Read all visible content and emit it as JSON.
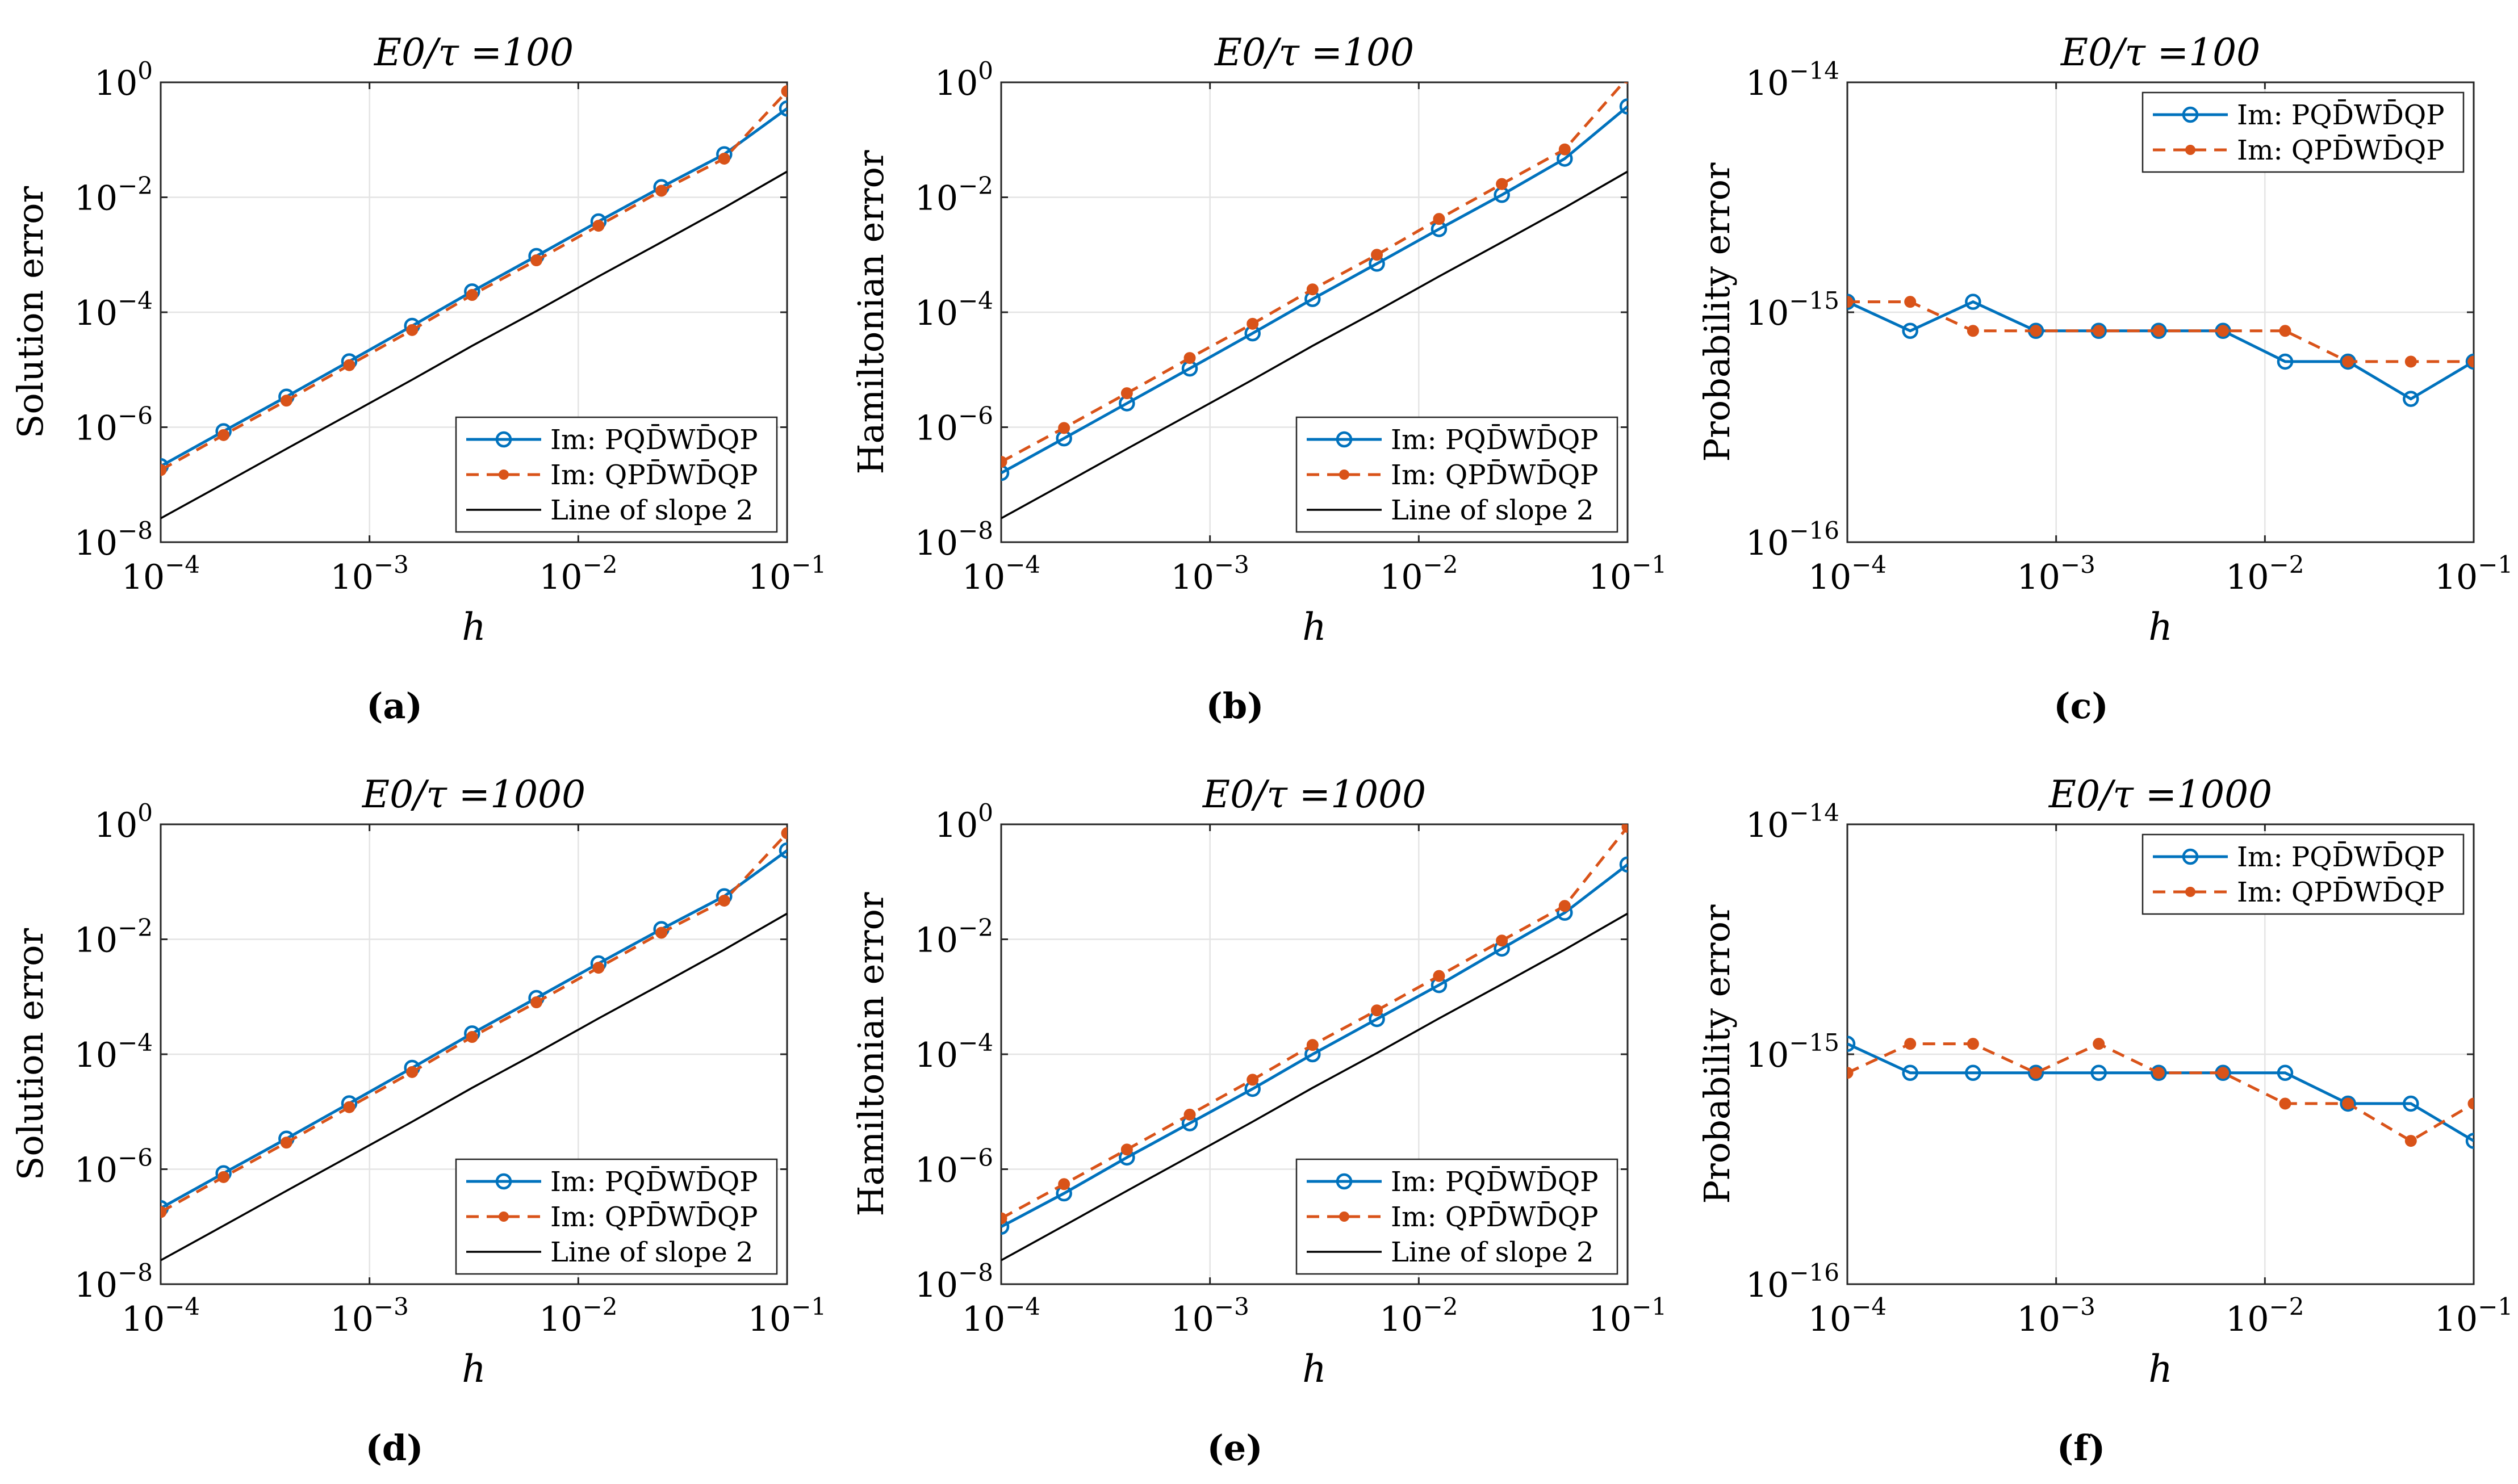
{
  "chart_data": [
    {
      "panel": "(a)",
      "type": "line",
      "title": "E0/τ =100",
      "xlabel": "h",
      "ylabel": "Solution error",
      "xscale": "log",
      "yscale": "log",
      "xlim": [
        0.0001,
        0.1
      ],
      "ylim": [
        1e-08,
        1
      ],
      "xticks": [
        0.0001,
        0.001,
        0.01,
        0.1
      ],
      "yticks": [
        1e-08,
        1e-06,
        0.0001,
        0.01,
        1
      ],
      "grid": true,
      "legend_position": "lower-right",
      "x": [
        0.0001,
        0.0002,
        0.0004,
        0.0008,
        0.0016,
        0.0031,
        0.0063,
        0.0125,
        0.025,
        0.05,
        0.1
      ],
      "series": [
        {
          "name": "Im: PQD̄WD̄QP",
          "color": "#0072BD",
          "line": "solid",
          "marker": "circle",
          "values": [
            2.1e-07,
            8.5e-07,
            3.4e-06,
            1.4e-05,
            5.8e-05,
            0.00023,
            0.00095,
            0.0038,
            0.015,
            0.056,
            0.35
          ]
        },
        {
          "name": "Im: QPD̄WD̄QP",
          "color": "#D95319",
          "line": "dashed",
          "marker": "dot",
          "values": [
            1.8e-07,
            7.3e-07,
            2.9e-06,
            1.2e-05,
            4.9e-05,
            0.0002,
            0.0008,
            0.0032,
            0.013,
            0.047,
            0.7
          ]
        },
        {
          "name": "Line of slope 2",
          "color": "#000000",
          "line": "solid",
          "marker": "none",
          "values": [
            2.6e-08,
            1.04e-07,
            4.2e-07,
            1.67e-06,
            6.7e-06,
            2.6e-05,
            0.000105,
            0.00042,
            0.00165,
            0.0066,
            0.028
          ]
        }
      ]
    },
    {
      "panel": "(b)",
      "type": "line",
      "title": "E0/τ =100",
      "xlabel": "h",
      "ylabel": "Hamiltonian error",
      "xscale": "log",
      "yscale": "log",
      "xlim": [
        0.0001,
        0.1
      ],
      "ylim": [
        1e-08,
        1
      ],
      "xticks": [
        0.0001,
        0.001,
        0.01,
        0.1
      ],
      "yticks": [
        1e-08,
        1e-06,
        0.0001,
        0.01,
        1
      ],
      "grid": true,
      "legend_position": "lower-right",
      "x": [
        0.0001,
        0.0002,
        0.0004,
        0.0008,
        0.0016,
        0.0031,
        0.0063,
        0.0125,
        0.025,
        0.05,
        0.1
      ],
      "series": [
        {
          "name": "Im: PQD̄WD̄QP",
          "color": "#0072BD",
          "line": "solid",
          "marker": "circle",
          "values": [
            1.6e-07,
            6.4e-07,
            2.6e-06,
            1.05e-05,
            4.3e-05,
            0.00017,
            0.0007,
            0.0028,
            0.011,
            0.047,
            0.38
          ]
        },
        {
          "name": "Im: QPD̄WD̄QP",
          "color": "#D95319",
          "line": "dashed",
          "marker": "dot",
          "values": [
            2.5e-07,
            9.7e-07,
            3.9e-06,
            1.6e-05,
            6.3e-05,
            0.00025,
            0.001,
            0.0042,
            0.017,
            0.068,
            1.2
          ]
        },
        {
          "name": "Line of slope 2",
          "color": "#000000",
          "line": "solid",
          "marker": "none",
          "values": [
            2.6e-08,
            1.04e-07,
            4.2e-07,
            1.67e-06,
            6.7e-06,
            2.6e-05,
            0.000105,
            0.00042,
            0.00165,
            0.0066,
            0.028
          ]
        }
      ]
    },
    {
      "panel": "(c)",
      "type": "line",
      "title": "E0/τ =100",
      "xlabel": "h",
      "ylabel": "Probability error",
      "xscale": "log",
      "yscale": "log",
      "xlim": [
        0.0001,
        0.1
      ],
      "ylim": [
        1e-16,
        1e-14
      ],
      "xticks": [
        0.0001,
        0.001,
        0.01,
        0.1
      ],
      "yticks": [
        1e-16,
        1e-15,
        1e-14
      ],
      "grid": true,
      "legend_position": "top-right",
      "x": [
        0.0001,
        0.0002,
        0.0004,
        0.0008,
        0.0016,
        0.0031,
        0.0063,
        0.0125,
        0.025,
        0.05,
        0.1
      ],
      "series": [
        {
          "name": "Im: PQD̄WD̄QP",
          "color": "#0072BD",
          "line": "solid",
          "marker": "circle",
          "values": [
            1.11e-15,
            8.3e-16,
            1.11e-15,
            8.3e-16,
            8.3e-16,
            8.3e-16,
            8.3e-16,
            6.1e-16,
            6.1e-16,
            4.2e-16,
            6.1e-16
          ]
        },
        {
          "name": "Im: QPD̄WD̄QP",
          "color": "#D95319",
          "line": "dashed",
          "marker": "dot",
          "values": [
            1.11e-15,
            1.11e-15,
            8.3e-16,
            8.3e-16,
            8.3e-16,
            8.3e-16,
            8.3e-16,
            8.3e-16,
            6.1e-16,
            6.1e-16,
            6.1e-16
          ]
        }
      ]
    },
    {
      "panel": "(d)",
      "type": "line",
      "title": "E0/τ =1000",
      "xlabel": "h",
      "ylabel": "Solution error",
      "xscale": "log",
      "yscale": "log",
      "xlim": [
        0.0001,
        0.1
      ],
      "ylim": [
        1e-08,
        1
      ],
      "xticks": [
        0.0001,
        0.001,
        0.01,
        0.1
      ],
      "yticks": [
        1e-08,
        1e-06,
        0.0001,
        0.01,
        1
      ],
      "grid": true,
      "legend_position": "lower-right",
      "x": [
        0.0001,
        0.0002,
        0.0004,
        0.0008,
        0.0016,
        0.0031,
        0.0063,
        0.0125,
        0.025,
        0.05,
        0.1
      ],
      "series": [
        {
          "name": "Im: PQD̄WD̄QP",
          "color": "#0072BD",
          "line": "solid",
          "marker": "circle",
          "values": [
            2.1e-07,
            8.5e-07,
            3.4e-06,
            1.4e-05,
            5.8e-05,
            0.00023,
            0.00095,
            0.0038,
            0.015,
            0.056,
            0.35
          ]
        },
        {
          "name": "Im: QPD̄WD̄QP",
          "color": "#D95319",
          "line": "dashed",
          "marker": "dot",
          "values": [
            1.8e-07,
            7.3e-07,
            2.9e-06,
            1.2e-05,
            4.9e-05,
            0.0002,
            0.0008,
            0.0032,
            0.013,
            0.047,
            0.7
          ]
        },
        {
          "name": "Line of slope 2",
          "color": "#000000",
          "line": "solid",
          "marker": "none",
          "values": [
            2.6e-08,
            1.04e-07,
            4.2e-07,
            1.67e-06,
            6.7e-06,
            2.6e-05,
            0.000105,
            0.00042,
            0.00165,
            0.0066,
            0.028
          ]
        }
      ]
    },
    {
      "panel": "(e)",
      "type": "line",
      "title": "E0/τ =1000",
      "xlabel": "h",
      "ylabel": "Hamiltonian error",
      "xscale": "log",
      "yscale": "log",
      "xlim": [
        0.0001,
        0.1
      ],
      "ylim": [
        1e-08,
        1
      ],
      "xticks": [
        0.0001,
        0.001,
        0.01,
        0.1
      ],
      "yticks": [
        1e-08,
        1e-06,
        0.0001,
        0.01,
        1
      ],
      "grid": true,
      "legend_position": "lower-right",
      "x": [
        0.0001,
        0.0002,
        0.0004,
        0.0008,
        0.0016,
        0.0031,
        0.0063,
        0.0125,
        0.025,
        0.05,
        0.1
      ],
      "series": [
        {
          "name": "Im: PQD̄WD̄QP",
          "color": "#0072BD",
          "line": "solid",
          "marker": "circle",
          "values": [
            1e-07,
            3.8e-07,
            1.6e-06,
            6.3e-06,
            2.5e-05,
            0.0001,
            0.00041,
            0.0016,
            0.0069,
            0.029,
            0.2
          ]
        },
        {
          "name": "Im: QPD̄WD̄QP",
          "color": "#D95319",
          "line": "dashed",
          "marker": "dot",
          "values": [
            1.4e-07,
            5.5e-07,
            2.2e-06,
            8.9e-06,
            3.6e-05,
            0.000145,
            0.00058,
            0.0023,
            0.0095,
            0.038,
            0.9
          ]
        },
        {
          "name": "Line of slope 2",
          "color": "#000000",
          "line": "solid",
          "marker": "none",
          "values": [
            2.6e-08,
            1.04e-07,
            4.2e-07,
            1.67e-06,
            6.7e-06,
            2.6e-05,
            0.000105,
            0.00042,
            0.00165,
            0.0066,
            0.028
          ]
        }
      ]
    },
    {
      "panel": "(f)",
      "type": "line",
      "title": "E0/τ =1000",
      "xlabel": "h",
      "ylabel": "Probability error",
      "xscale": "log",
      "yscale": "log",
      "xlim": [
        0.0001,
        0.1
      ],
      "ylim": [
        1e-16,
        1e-14
      ],
      "xticks": [
        0.0001,
        0.001,
        0.01,
        0.1
      ],
      "yticks": [
        1e-16,
        1e-15,
        1e-14
      ],
      "grid": true,
      "legend_position": "top-right",
      "x": [
        0.0001,
        0.0002,
        0.0004,
        0.0008,
        0.0016,
        0.0031,
        0.0063,
        0.0125,
        0.025,
        0.05,
        0.1
      ],
      "series": [
        {
          "name": "Im: PQD̄WD̄QP",
          "color": "#0072BD",
          "line": "solid",
          "marker": "circle",
          "values": [
            1.11e-15,
            8.3e-16,
            8.3e-16,
            8.3e-16,
            8.3e-16,
            8.3e-16,
            8.3e-16,
            8.3e-16,
            6.1e-16,
            6.1e-16,
            4.2e-16
          ]
        },
        {
          "name": "Im: QPD̄WD̄QP",
          "color": "#D95319",
          "line": "dashed",
          "marker": "dot",
          "values": [
            8.3e-16,
            1.11e-15,
            1.11e-15,
            8.3e-16,
            1.11e-15,
            8.3e-16,
            8.3e-16,
            6.1e-16,
            6.1e-16,
            4.2e-16,
            6.1e-16
          ]
        }
      ]
    }
  ]
}
